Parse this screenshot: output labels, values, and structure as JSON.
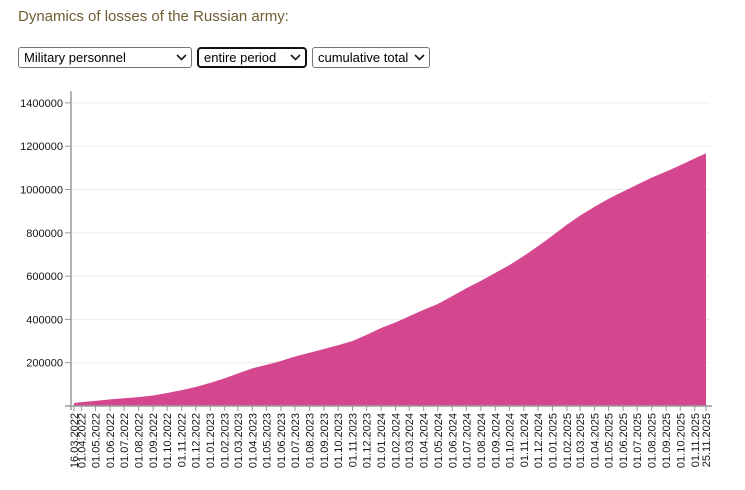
{
  "header": {
    "title": "Dynamics of losses of the Russian army:",
    "title_color": "#6f5e33"
  },
  "filters": {
    "category_select": {
      "value": "Military personnel"
    },
    "period_select": {
      "value": "entire period"
    },
    "mode_select": {
      "value": "cumulative total"
    }
  },
  "chart_data": {
    "type": "area",
    "title": "Dynamics of losses of the Russian army",
    "series_name": "Military personnel, cumulative total",
    "x": [
      "16.03.2022",
      "01.04.2022",
      "01.05.2022",
      "01.06.2022",
      "01.07.2022",
      "01.08.2022",
      "01.09.2022",
      "01.10.2022",
      "01.11.2022",
      "01.12.2022",
      "01.01.2023",
      "01.02.2023",
      "01.03.2023",
      "01.04.2023",
      "01.05.2023",
      "01.06.2023",
      "01.07.2023",
      "01.08.2023",
      "01.09.2023",
      "01.10.2023",
      "01.11.2023",
      "01.12.2023",
      "01.01.2024",
      "01.02.2024",
      "01.03.2024",
      "01.04.2024",
      "01.05.2024",
      "01.06.2024",
      "01.07.2024",
      "01.08.2024",
      "01.09.2024",
      "01.10.2024",
      "01.11.2024",
      "01.12.2024",
      "01.01.2025",
      "01.02.2025",
      "01.03.2025",
      "01.04.2025",
      "01.05.2025",
      "01.06.2025",
      "01.07.2025",
      "01.08.2025",
      "01.09.2025",
      "01.10.2025",
      "01.11.2025",
      "25.11.2025"
    ],
    "values": [
      13800,
      17800,
      23800,
      30850,
      35750,
      41030,
      48700,
      60110,
      73270,
      87900,
      106720,
      128420,
      149890,
      173990,
      189930,
      207910,
      228360,
      245700,
      263220,
      280470,
      299940,
      328760,
      360010,
      386230,
      414680,
      444520,
      470870,
      507440,
      543810,
      578030,
      615000,
      650640,
      693390,
      737690,
      786890,
      837610,
      879130,
      920450,
      957390,
      990620,
      1022470,
      1054970,
      1083440,
      1111760,
      1143650,
      1166960
    ],
    "ylim": [
      0,
      1450000
    ],
    "ytick_interval": 200000,
    "ytick_labels": [
      "200000",
      "400000",
      "600000",
      "800000",
      "1000000",
      "1200000",
      "1400000"
    ],
    "grid": true,
    "legend": "none",
    "xlabel": "",
    "ylabel": "",
    "area_color": "#d4478f",
    "grid_color": "#ebebeb",
    "axis_color": "#9a9a9a",
    "tick_label_color": "#141414"
  }
}
